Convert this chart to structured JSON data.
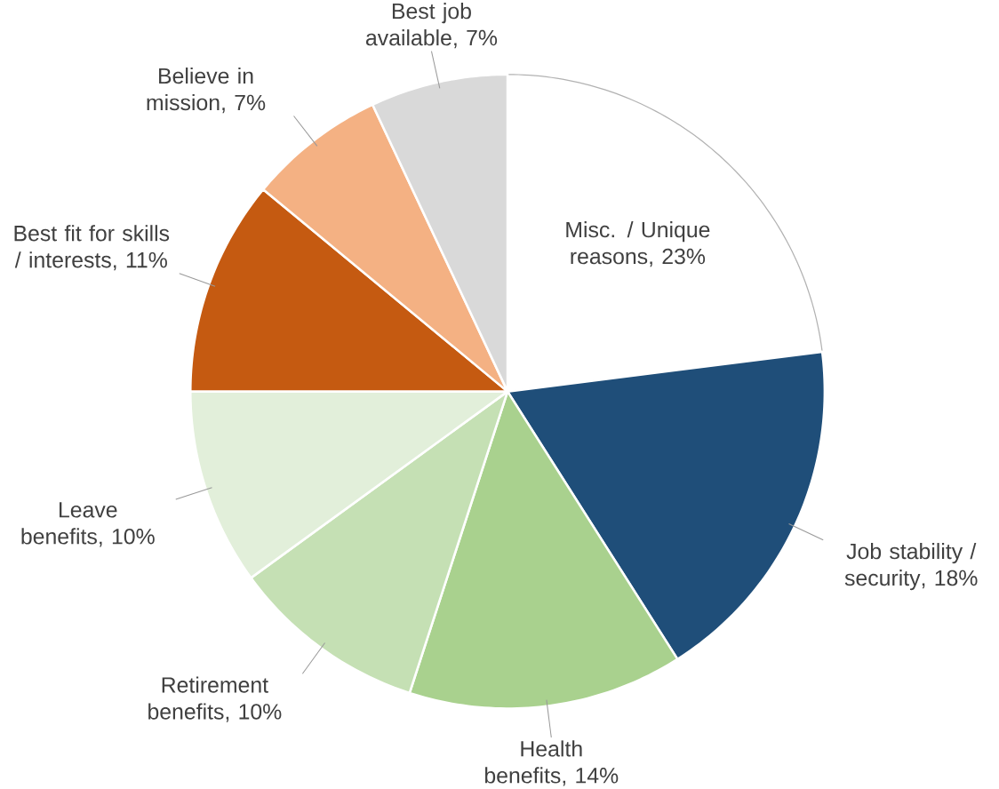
{
  "chart_data": {
    "type": "pie",
    "categories": [
      "Misc. / Unique reasons",
      "Job stability / security",
      "Health benefits",
      "Retirement benefits",
      "Leave benefits",
      "Best fit for skills / interests",
      "Believe in mission",
      "Best job available"
    ],
    "values": [
      23,
      18,
      14,
      10,
      10,
      11,
      7,
      7
    ],
    "value_labels": [
      ", 23%",
      ", 18%",
      ", 14%",
      ", 10%",
      ", 10%",
      ", 11%",
      ", 7%",
      ", 7%"
    ],
    "colors": [
      "#ffffff",
      "#1f4e79",
      "#a9d18e",
      "#c5e0b4",
      "#e2efda",
      "#c55a11",
      "#f4b183",
      "#d9d9d9"
    ]
  }
}
